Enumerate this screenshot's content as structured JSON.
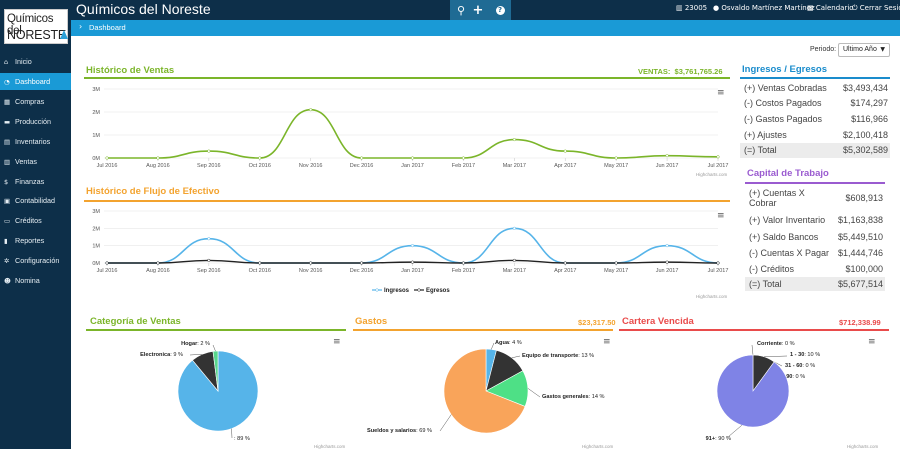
{
  "app": {
    "title": "Químicos del Noreste",
    "logo_line1": "Químicos del",
    "logo_line2": "NORESTE"
  },
  "topbar": {
    "buttons": [
      {
        "name": "search",
        "glyph": "🔍"
      },
      {
        "name": "add",
        "glyph": "+"
      },
      {
        "name": "help",
        "glyph": "?"
      }
    ],
    "company_id": "23005",
    "user": "Osvaldo Martínez Martínez",
    "calendar": "Calendario",
    "logout": "Cerrar Sesión"
  },
  "breadcrumb": {
    "label": "Dashboard"
  },
  "sidebar": {
    "items": [
      {
        "label": "Inicio",
        "icon": "home-icon",
        "glyph": "⌂"
      },
      {
        "label": "Dashboard",
        "icon": "dashboard-icon",
        "glyph": "◔",
        "active": true
      },
      {
        "label": "Compras",
        "icon": "cart-icon",
        "glyph": "▦"
      },
      {
        "label": "Producción",
        "icon": "truck-icon",
        "glyph": "▬"
      },
      {
        "label": "Inventarios",
        "icon": "inventory-icon",
        "glyph": "▤"
      },
      {
        "label": "Ventas",
        "icon": "ventas-icon",
        "glyph": "▥"
      },
      {
        "label": "Finanzas",
        "icon": "dollar-icon",
        "glyph": "$"
      },
      {
        "label": "Contabilidad",
        "icon": "calculator-icon",
        "glyph": "▣"
      },
      {
        "label": "Créditos",
        "icon": "credit-card-icon",
        "glyph": "▭"
      },
      {
        "label": "Reportes",
        "icon": "bar-chart-icon",
        "glyph": "▮"
      },
      {
        "label": "Configuración",
        "icon": "gears-icon",
        "glyph": "✲"
      },
      {
        "label": "Nomina",
        "icon": "users-icon",
        "glyph": "☻"
      }
    ]
  },
  "period": {
    "label": "Periodo:",
    "selected": "Ultimo Año"
  },
  "ventas_chart": {
    "title": "Histórico de Ventas",
    "total_label": "VENTAS:",
    "total_value": "$3,761,765.26",
    "credit": "Highcharts.com"
  },
  "flujo_chart": {
    "title": "Histórico de Flujo de Efectivo",
    "credit": "Highcharts.com"
  },
  "ingresos_egresos": {
    "title": "Ingresos / Egresos",
    "rows": [
      {
        "label": "(+) Ventas Cobradas",
        "value": "$3,493,434"
      },
      {
        "label": "(-) Costos Pagados",
        "value": "$174,297"
      },
      {
        "label": "(-) Gastos Pagados",
        "value": "$116,966"
      },
      {
        "label": "(+) Ajustes",
        "value": "$2,100,418"
      },
      {
        "label": "(=) Total",
        "value": "$5,302,589",
        "total": true
      }
    ]
  },
  "capital_trabajo": {
    "title": "Capital de Trabajo",
    "rows": [
      {
        "label": "(+) Cuentas X Cobrar",
        "value": "$608,913"
      },
      {
        "label": "(+) Valor Inventario",
        "value": "$1,163,838"
      },
      {
        "label": "(+) Saldo Bancos",
        "value": "$5,449,510"
      },
      {
        "label": "(-) Cuentas X Pagar",
        "value": "$1,444,746"
      },
      {
        "label": "(-) Créditos",
        "value": "$100,000"
      },
      {
        "label": "(=) Total",
        "value": "$5,677,514",
        "total": true
      }
    ]
  },
  "categoria_ventas": {
    "title": "Categoría de Ventas",
    "credit": "Highcharts.com"
  },
  "gastos": {
    "title": "Gastos",
    "total_value": "$23,317.50",
    "credit": "Highcharts.com"
  },
  "cartera_vencida": {
    "title": "Cartera Vencida",
    "total_value": "$712,338.99",
    "credit": "Highcharts.com"
  },
  "colors": {
    "green": "#7bb52a",
    "orange": "#f3a32f",
    "red": "#e94b4b",
    "blue": "#1a8ccc",
    "purple": "#9a5bd0",
    "navy": "#0d2f49",
    "light_blue": "#56b4e9"
  },
  "chart_data": [
    {
      "type": "line",
      "title": "Histórico de Ventas",
      "x": [
        "Jul 2016",
        "Aug 2016",
        "Sep 2016",
        "Oct 2016",
        "Nov 2016",
        "Dec 2016",
        "Jan 2017",
        "Feb 2017",
        "Mar 2017",
        "Apr 2017",
        "May 2017",
        "Jun 2017",
        "Jul 2017"
      ],
      "y_ticks": [
        "0M",
        "1M",
        "2M",
        "3M"
      ],
      "ylim": [
        0,
        3000000
      ],
      "series": [
        {
          "values": [
            0,
            0,
            300000,
            0,
            2100000,
            0,
            0,
            0,
            800000,
            300000,
            0,
            100000,
            50000
          ],
          "color": "#7bb52a"
        }
      ]
    },
    {
      "type": "line",
      "title": "Histórico de Flujo de Efectivo",
      "x": [
        "Jul 2016",
        "Aug 2016",
        "Sep 2016",
        "Oct 2016",
        "Nov 2016",
        "Dec 2016",
        "Jan 2017",
        "Feb 2017",
        "Mar 2017",
        "Apr 2017",
        "May 2017",
        "Jun 2017",
        "Jul 2017"
      ],
      "y_ticks": [
        "0M",
        "1M",
        "2M",
        "3M"
      ],
      "ylim": [
        0,
        3000000
      ],
      "legend": "bottom",
      "series": [
        {
          "name": "Ingresos",
          "values": [
            0,
            0,
            1400000,
            0,
            0,
            0,
            1000000,
            0,
            2000000,
            0,
            0,
            1000000,
            0
          ],
          "color": "#56b4e9"
        },
        {
          "name": "Egresos",
          "values": [
            0,
            0,
            150000,
            0,
            0,
            0,
            50000,
            0,
            150000,
            0,
            0,
            50000,
            0
          ],
          "color": "#222222"
        }
      ]
    },
    {
      "type": "pie",
      "title": "Categoría de Ventas",
      "slices": [
        {
          "label": "",
          "value": 89,
          "display": ": 89 %",
          "color": "#56b4e9"
        },
        {
          "label": "Electronica",
          "value": 9,
          "display": ": 9 %",
          "color": "#333333"
        },
        {
          "label": "Hogar",
          "value": 2,
          "display": ": 2 %",
          "color": "#58d68d"
        }
      ]
    },
    {
      "type": "pie",
      "title": "Gastos",
      "slices": [
        {
          "label": "Agua",
          "value": 4,
          "display": ": 4 %",
          "color": "#56b4e9"
        },
        {
          "label": "Equipo de transporte",
          "value": 13,
          "display": ": 13 %",
          "color": "#333333"
        },
        {
          "label": "Gastos generales",
          "value": 14,
          "display": ": 14 %",
          "color": "#4ee086"
        },
        {
          "label": "Sueldos y salarios",
          "value": 69,
          "display": ": 69 %",
          "color": "#f9a45a"
        }
      ]
    },
    {
      "type": "pie",
      "title": "Cartera Vencida",
      "slices": [
        {
          "label": "Corriente",
          "value": 0,
          "display": ": 0 %",
          "color": "#56b4e9"
        },
        {
          "label": "1 - 30",
          "value": 10,
          "display": ": 10 %",
          "color": "#333333"
        },
        {
          "label": "31 - 60",
          "value": 0,
          "display": ": 0 %",
          "color": "#4ee086"
        },
        {
          "label": "61 - 90",
          "value": 0,
          "display": ": 0 %",
          "color": "#f9a45a"
        },
        {
          "label": "91+",
          "value": 90,
          "display": ": 90 %",
          "color": "#7f83e6"
        }
      ]
    }
  ]
}
